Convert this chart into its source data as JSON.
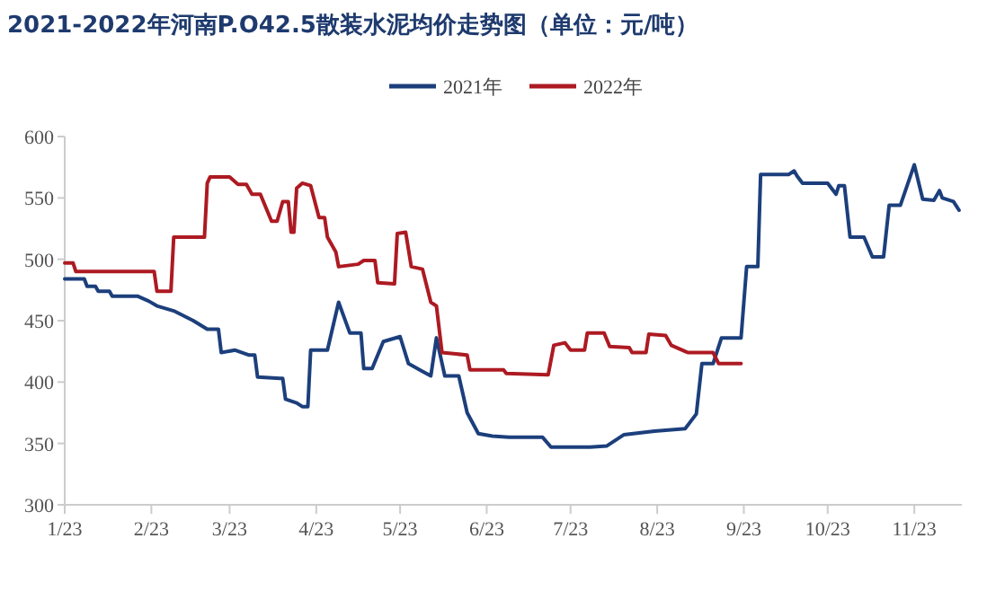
{
  "chart_data": {
    "type": "line",
    "title": "2021-2022年河南P.O42.5散装水泥均价走势图（单位：元/吨）",
    "legend": "top",
    "line_style": "solid",
    "marker": "none",
    "xlim": [
      "--01-23",
      "--12-10"
    ],
    "xticks": [
      {
        "value": "--01-23",
        "label": "1/23"
      },
      {
        "value": "--02-23",
        "label": "2/23"
      },
      {
        "value": "--03-23",
        "label": "3/23"
      },
      {
        "value": "--04-23",
        "label": "4/23"
      },
      {
        "value": "--05-23",
        "label": "5/23"
      },
      {
        "value": "--06-23",
        "label": "6/23"
      },
      {
        "value": "--07-23",
        "label": "7/23"
      },
      {
        "value": "--08-23",
        "label": "8/23"
      },
      {
        "value": "--09-23",
        "label": "9/23"
      },
      {
        "value": "--10-23",
        "label": "10/23"
      },
      {
        "value": "--11-23",
        "label": "11/23"
      }
    ],
    "ylim": [
      300,
      600
    ],
    "yticks": [
      300,
      350,
      400,
      450,
      500,
      550,
      600
    ],
    "series": [
      {
        "name": "2021年",
        "color": "#1c3f7c",
        "x": [
          "--01-23",
          "--01-30",
          "--01-31",
          "--02-03",
          "--02-04",
          "--02-08",
          "--02-09",
          "--02-18",
          "--02-20",
          "--02-22",
          "--02-25",
          "--03-03",
          "--03-10",
          "--03-15",
          "--03-19",
          "--03-20",
          "--03-25",
          "--03-30",
          "--04-01",
          "--04-02",
          "--04-10",
          "--04-11",
          "--04-12",
          "--04-16",
          "--04-18",
          "--04-20",
          "--04-21",
          "--04-27",
          "--05-01",
          "--05-05",
          "--05-09",
          "--05-10",
          "--05-13",
          "--05-17",
          "--05-20",
          "--05-23",
          "--05-26",
          "--05-30",
          "--06-03",
          "--06-05",
          "--06-08",
          "--06-13",
          "--06-16",
          "--06-20",
          "--06-25",
          "--07-01",
          "--07-13",
          "--07-16",
          "--07-30",
          "--08-05",
          "--08-11",
          "--08-22",
          "--09-02",
          "--09-06",
          "--09-08",
          "--09-12",
          "--09-15",
          "--09-22",
          "--09-24",
          "--09-28",
          "--09-29",
          "--10-09",
          "--10-11",
          "--10-12",
          "--10-14",
          "--10-23",
          "--10-26",
          "--10-27",
          "--10-29",
          "--10-31",
          "--11-05",
          "--11-08",
          "--11-12",
          "--11-14",
          "--11-18",
          "--11-23",
          "--11-26",
          "--11-30",
          "--12-02",
          "--12-03",
          "--12-07",
          "--12-09"
        ],
        "values": [
          484,
          484,
          478,
          478,
          474,
          474,
          470,
          470,
          468,
          466,
          462,
          458,
          450,
          443,
          443,
          424,
          426,
          422,
          422,
          404,
          403,
          403,
          386,
          383,
          380,
          380,
          426,
          426,
          465,
          440,
          440,
          411,
          411,
          433,
          435,
          437,
          415,
          410,
          405,
          436,
          405,
          405,
          375,
          358,
          356,
          355,
          355,
          347,
          347,
          348,
          357,
          360,
          362,
          374,
          415,
          415,
          436,
          436,
          494,
          494,
          569,
          569,
          572,
          568,
          562,
          562,
          553,
          560,
          560,
          518,
          518,
          502,
          502,
          544,
          544,
          577,
          549,
          548,
          556,
          550,
          547,
          540
        ]
      },
      {
        "name": "2022年",
        "color": "#ad1a22",
        "x": [
          "--01-23",
          "--01-26",
          "--01-27",
          "--02-24",
          "--02-25",
          "--03-02",
          "--03-03",
          "--03-14",
          "--03-15",
          "--03-16",
          "--03-23",
          "--03-26",
          "--03-29",
          "--03-31",
          "--04-03",
          "--04-07",
          "--04-09",
          "--04-11",
          "--04-13",
          "--04-14",
          "--04-15",
          "--04-16",
          "--04-18",
          "--04-21",
          "--04-24",
          "--04-26",
          "--04-27",
          "--04-30",
          "--05-01",
          "--05-08",
          "--05-10",
          "--05-14",
          "--05-15",
          "--05-21",
          "--05-22",
          "--05-25",
          "--05-27",
          "--05-31",
          "--06-03",
          "--06-05",
          "--06-07",
          "--06-16",
          "--06-17",
          "--06-29",
          "--06-30",
          "--07-15",
          "--07-17",
          "--07-21",
          "--07-23",
          "--07-28",
          "--07-29",
          "--08-04",
          "--08-06",
          "--08-13",
          "--08-14",
          "--08-19",
          "--08-20",
          "--08-26",
          "--08-28",
          "--09-03",
          "--09-12",
          "--09-14",
          "--09-22"
        ],
        "values": [
          497,
          497,
          490,
          490,
          474,
          474,
          518,
          518,
          562,
          567,
          567,
          561,
          561,
          553,
          553,
          531,
          531,
          547,
          547,
          522,
          522,
          558,
          562,
          560,
          534,
          534,
          518,
          506,
          494,
          496,
          499,
          499,
          481,
          480,
          521,
          522,
          494,
          492,
          465,
          462,
          424,
          422,
          410,
          410,
          407,
          406,
          430,
          432,
          426,
          426,
          440,
          440,
          429,
          428,
          424,
          424,
          439,
          438,
          430,
          424,
          424,
          415,
          415
        ]
      }
    ]
  }
}
